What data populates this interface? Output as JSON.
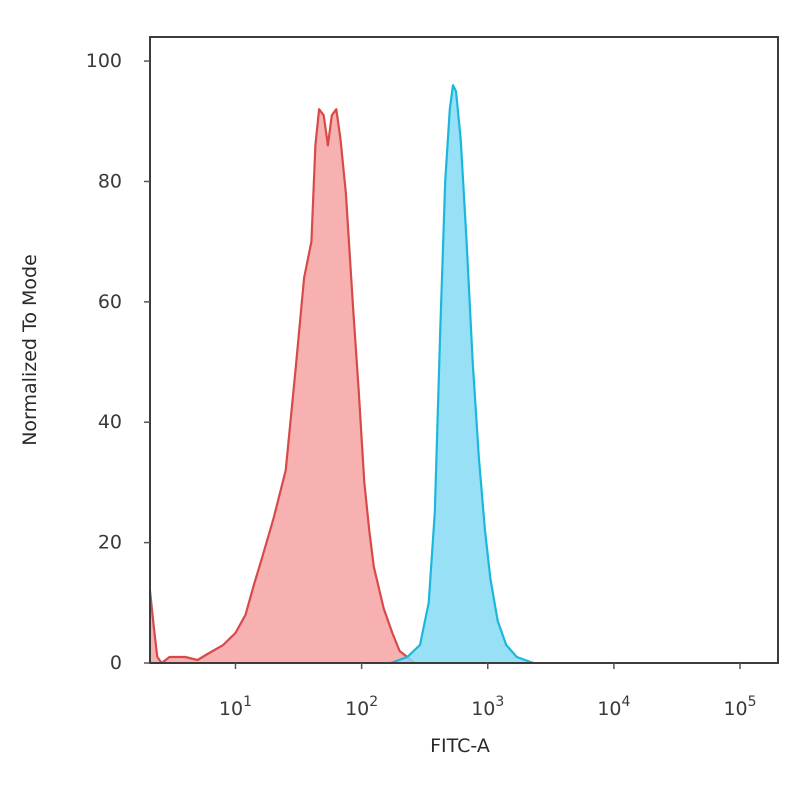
{
  "chart_data": {
    "type": "area",
    "xlabel": "FITC-A",
    "ylabel": "Normalized To Mode",
    "x_scale": "log",
    "xlim": [
      2.1,
      200000
    ],
    "ylim": [
      0,
      104
    ],
    "x_ticks": [
      {
        "value": 10,
        "base": "10",
        "exp": "1"
      },
      {
        "value": 100,
        "base": "10",
        "exp": "2"
      },
      {
        "value": 1000,
        "base": "10",
        "exp": "3"
      },
      {
        "value": 10000,
        "base": "10",
        "exp": "4"
      },
      {
        "value": 100000,
        "base": "10",
        "exp": "5"
      }
    ],
    "y_ticks": [
      0,
      20,
      40,
      60,
      80,
      100
    ],
    "grid": false,
    "series": [
      {
        "color": "#d84a4a",
        "fill": "#f6a3a3",
        "points": [
          [
            2.1,
            12
          ],
          [
            2.25,
            6
          ],
          [
            2.4,
            1
          ],
          [
            2.6,
            0
          ],
          [
            3,
            1
          ],
          [
            4,
            1
          ],
          [
            5,
            0.5
          ],
          [
            6,
            1.5
          ],
          [
            8,
            3
          ],
          [
            10,
            5
          ],
          [
            12,
            8
          ],
          [
            14,
            13
          ],
          [
            16,
            17
          ],
          [
            20,
            24
          ],
          [
            25,
            32
          ],
          [
            30,
            49
          ],
          [
            35,
            64
          ],
          [
            40,
            70
          ],
          [
            43,
            86
          ],
          [
            46,
            92
          ],
          [
            50,
            91
          ],
          [
            54,
            86
          ],
          [
            58,
            91
          ],
          [
            63,
            92
          ],
          [
            68,
            87
          ],
          [
            75,
            78
          ],
          [
            85,
            60
          ],
          [
            95,
            45
          ],
          [
            105,
            30
          ],
          [
            115,
            22
          ],
          [
            125,
            16
          ],
          [
            150,
            9
          ],
          [
            175,
            5
          ],
          [
            200,
            2
          ],
          [
            230,
            1
          ],
          [
            260,
            0
          ]
        ]
      },
      {
        "color": "#1bb7dc",
        "fill": "#86dbf4",
        "points": [
          [
            170,
            0
          ],
          [
            230,
            1
          ],
          [
            290,
            3
          ],
          [
            340,
            10
          ],
          [
            380,
            25
          ],
          [
            420,
            55
          ],
          [
            460,
            80
          ],
          [
            500,
            92
          ],
          [
            530,
            96
          ],
          [
            560,
            95
          ],
          [
            610,
            87
          ],
          [
            680,
            70
          ],
          [
            760,
            50
          ],
          [
            850,
            34
          ],
          [
            950,
            22
          ],
          [
            1050,
            14
          ],
          [
            1200,
            7
          ],
          [
            1400,
            3
          ],
          [
            1700,
            1
          ],
          [
            2300,
            0
          ]
        ]
      }
    ]
  }
}
